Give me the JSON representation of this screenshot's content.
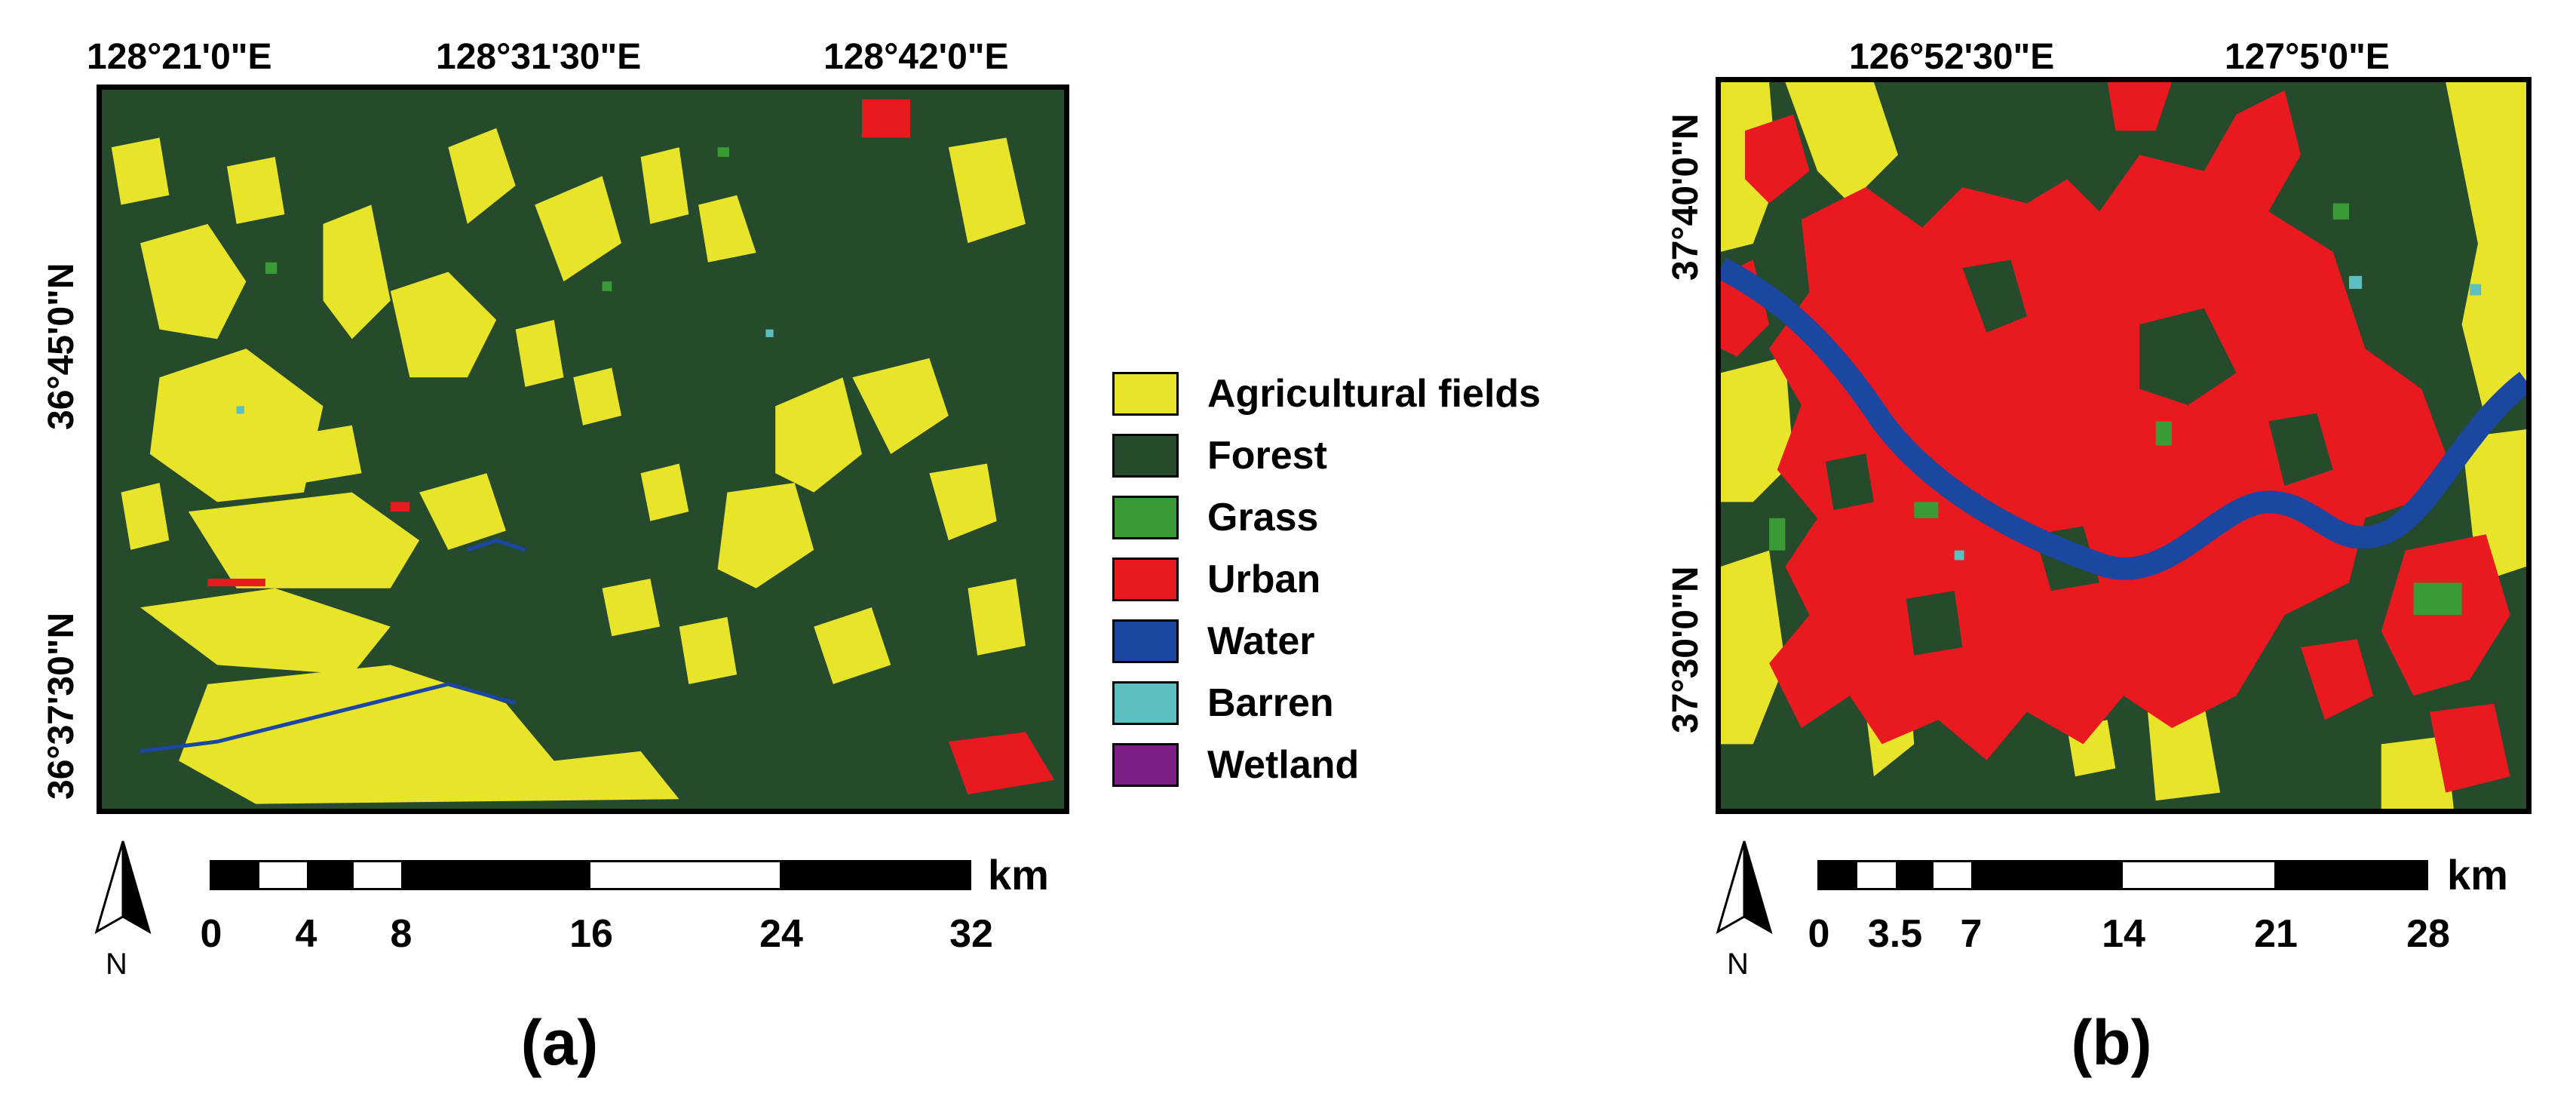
{
  "legend": {
    "items": [
      {
        "label": "Agricultural fields",
        "color": "#e8e42a"
      },
      {
        "label": "Forest",
        "color": "#254a2c"
      },
      {
        "label": "Grass",
        "color": "#3a9a36"
      },
      {
        "label": "Urban",
        "color": "#e8191f"
      },
      {
        "label": "Water",
        "color": "#1c47a0"
      },
      {
        "label": "Barren",
        "color": "#5cc0c2"
      },
      {
        "label": "Wetland",
        "color": "#7c1f86"
      }
    ]
  },
  "panel_a": {
    "label": "(a)",
    "top_coords": [
      "128°21'0\"E",
      "128°31'30\"E",
      "128°42'0\"E"
    ],
    "left_coords": [
      "36°45'0\"N",
      "36°37'30\"N"
    ],
    "scale": {
      "unit": "km",
      "ticks": [
        "0",
        "4",
        "8",
        "16",
        "24",
        "32"
      ]
    },
    "north": "N"
  },
  "panel_b": {
    "label": "(b)",
    "top_coords": [
      "126°52'30\"E",
      "127°5'0\"E"
    ],
    "left_coords": [
      "37°40'0\"N",
      "37°30'0\"N"
    ],
    "scale": {
      "unit": "km",
      "ticks": [
        "0",
        "3.5",
        "7",
        "14",
        "21",
        "28"
      ]
    },
    "north": "N"
  }
}
